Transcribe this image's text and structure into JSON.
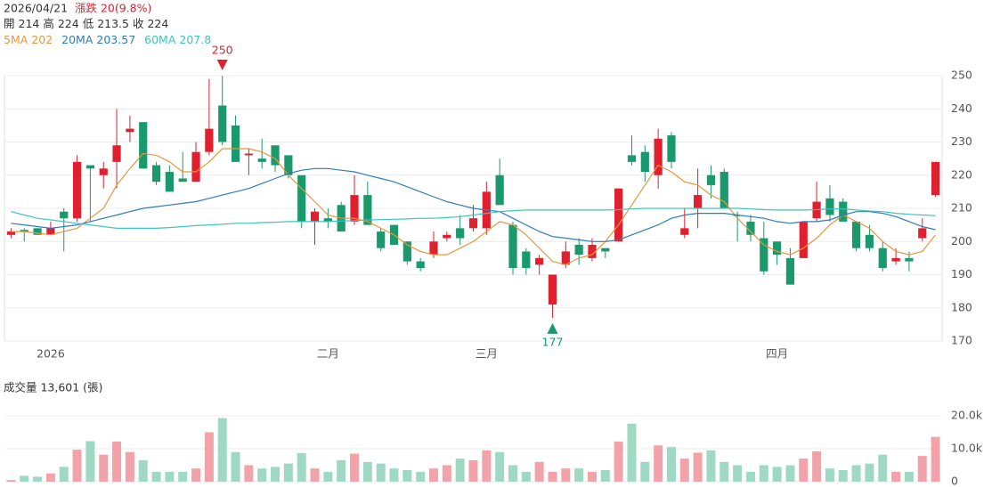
{
  "chart_data": {
    "type": "candlestick",
    "header": {
      "date": "2026/04/21",
      "change": "漲跌 20(9.8%)",
      "ohlc_labels": [
        "開",
        "高",
        "低",
        "收"
      ]
    },
    "categories": [
      null,
      null,
      null,
      "2026",
      null,
      null,
      null,
      null,
      null,
      null,
      null,
      null,
      null,
      null,
      null,
      null,
      null,
      null,
      null,
      null,
      null,
      null,
      null,
      null,
      "二月",
      null,
      null,
      null,
      null,
      null,
      null,
      null,
      null,
      null,
      null,
      null,
      "三月",
      null,
      null,
      null,
      null,
      null,
      null,
      null,
      null,
      null,
      null,
      null,
      null,
      null,
      null,
      null,
      null,
      null,
      null,
      null,
      null,
      null,
      "四月",
      null,
      null,
      null,
      null,
      null,
      null,
      null,
      null,
      null,
      null,
      null,
      null
    ],
    "open": [
      202,
      203.5,
      204,
      202,
      209,
      207,
      223,
      220,
      224,
      233,
      236,
      223,
      221,
      219,
      218,
      227,
      241,
      235,
      226,
      225,
      229,
      226,
      220,
      206,
      207,
      211,
      206,
      214,
      203,
      205,
      200,
      194,
      196,
      201,
      204,
      204,
      204,
      220,
      205,
      197,
      193,
      181,
      193,
      199,
      195,
      198,
      200,
      226,
      227,
      220,
      232,
      202,
      210,
      220,
      221,
      208,
      206,
      201,
      200,
      195,
      195,
      207,
      213,
      212,
      206,
      202,
      198,
      194,
      195,
      201,
      214
    ],
    "high": [
      204,
      204,
      204,
      206,
      210,
      226,
      223,
      224,
      240,
      238,
      236,
      224,
      223,
      227,
      230,
      249,
      250,
      238,
      228,
      231,
      229,
      226,
      220,
      210,
      210,
      212,
      220,
      218,
      204,
      205,
      200,
      195,
      203,
      203,
      208,
      211,
      218,
      225,
      206,
      198,
      196,
      190,
      200,
      201,
      201,
      198,
      216,
      232,
      229,
      234,
      233,
      210,
      222,
      223,
      222,
      209,
      208,
      206,
      200,
      198,
      206,
      218,
      217,
      213,
      206,
      205,
      200,
      198,
      197,
      207,
      224
    ],
    "low": [
      201,
      200,
      202,
      202,
      197,
      206,
      206,
      216,
      216,
      230,
      222,
      217,
      215,
      218,
      218,
      226,
      229,
      224,
      220,
      222,
      221,
      219,
      204,
      199,
      204,
      203,
      205,
      205,
      197,
      199,
      193,
      191,
      195,
      200,
      199,
      203,
      202,
      211,
      190,
      190,
      190,
      177,
      192,
      193,
      194,
      195,
      200,
      223,
      218,
      216,
      222,
      201,
      204,
      213,
      210,
      200,
      200,
      190,
      193,
      187,
      195,
      206,
      206,
      206,
      197,
      197,
      191,
      193,
      191,
      200,
      213.5
    ],
    "close": [
      203,
      203,
      202,
      204,
      207,
      224,
      222,
      222,
      229,
      234,
      222,
      218,
      215,
      218,
      227,
      234,
      230,
      224,
      226.5,
      224,
      223,
      220,
      206,
      209,
      206,
      203,
      214,
      205,
      198,
      199,
      194,
      192,
      200,
      202,
      201,
      207,
      215,
      211,
      192,
      192,
      195,
      190,
      197,
      196,
      199,
      197,
      216,
      224,
      221,
      231,
      224,
      204,
      214,
      217,
      210,
      208,
      202,
      191,
      196,
      187,
      206,
      212,
      208,
      206,
      198,
      198,
      192,
      195,
      194,
      204,
      224
    ],
    "up_color": "#e0202e",
    "down_color": "#1a9a6c",
    "series": [
      {
        "name": "5MA",
        "color": "#e8963a",
        "values": [
          203,
          203,
          202.5,
          202,
          203,
          204,
          207,
          210,
          217,
          222,
          226.5,
          226,
          224,
          221,
          221,
          224,
          228,
          228,
          228,
          227,
          225,
          220,
          216,
          212,
          208,
          207,
          207,
          206,
          204,
          202,
          199,
          197,
          196,
          196,
          198,
          200,
          203,
          206,
          205,
          202,
          198,
          194,
          193,
          195,
          196,
          200,
          205,
          211,
          217,
          223,
          221,
          218,
          217,
          214,
          212,
          207,
          203,
          199,
          197,
          196,
          198,
          201,
          205,
          208,
          206,
          204,
          200,
          197,
          196,
          197,
          202
        ]
      },
      {
        "name": "20MA",
        "color": "#2f7bbf",
        "values": [
          205.5,
          205,
          204.5,
          204,
          204.5,
          205,
          206,
          207,
          208,
          209,
          210,
          210.5,
          211,
          211.5,
          212,
          213,
          214,
          215,
          216,
          217.5,
          219,
          220.5,
          221.5,
          222,
          222,
          221.5,
          221,
          220,
          219,
          218,
          216.5,
          215,
          213.5,
          212,
          211,
          210,
          209.5,
          209,
          207,
          205,
          203,
          201.5,
          201,
          200.5,
          200,
          200,
          200.5,
          202,
          203.5,
          205,
          207,
          208,
          208.5,
          208.5,
          208.5,
          208,
          207.5,
          207,
          206,
          205.5,
          206,
          206,
          206.5,
          208,
          209,
          209,
          208.5,
          207.5,
          206,
          204.5,
          203.57
        ]
      },
      {
        "name": "60MA",
        "color": "#3cc6c0",
        "values": [
          209,
          208,
          207,
          206.5,
          206,
          205.5,
          205,
          204.5,
          204,
          204,
          204,
          204,
          204.2,
          204.5,
          204.8,
          205,
          205.2,
          205.5,
          205.5,
          205.7,
          205.8,
          206,
          206,
          206,
          206,
          206.2,
          206.3,
          206.5,
          206.6,
          206.7,
          206.8,
          207,
          207,
          207.2,
          207.5,
          208,
          208.5,
          209,
          209.3,
          209.5,
          209.5,
          209.5,
          209.5,
          209.5,
          209.5,
          209.5,
          209.6,
          209.8,
          210,
          210,
          210,
          210,
          210,
          210,
          210,
          210,
          209.8,
          209.6,
          209.5,
          209.5,
          209.5,
          209.6,
          209.8,
          209.8,
          209.5,
          209.2,
          209,
          208.5,
          208.2,
          208,
          207.8
        ]
      }
    ],
    "ylim": [
      170,
      250
    ],
    "yticks": [
      170,
      180,
      190,
      200,
      210,
      220,
      230,
      240,
      250
    ],
    "grid": true,
    "volume": {
      "caption": "成交量 13,601 (張)",
      "values": [
        500,
        1800,
        1500,
        2500,
        4500,
        9700,
        12300,
        8200,
        12200,
        9000,
        6500,
        3000,
        3000,
        3000,
        4000,
        15000,
        19300,
        9000,
        5000,
        4000,
        4500,
        5500,
        8700,
        4000,
        3000,
        6500,
        8500,
        6000,
        5500,
        4000,
        3500,
        3000,
        4000,
        5000,
        7000,
        6500,
        9500,
        9000,
        5000,
        3000,
        6000,
        3000,
        4000,
        4000,
        3000,
        3500,
        12200,
        17600,
        6000,
        11000,
        10500,
        7000,
        8800,
        9500,
        6000,
        5000,
        3000,
        5000,
        4500,
        5000,
        7000,
        9200,
        4000,
        3500,
        5000,
        5500,
        8200,
        3000,
        3000,
        7800,
        13601
      ],
      "up_color": "#f2a3a9",
      "down_color": "#9fd9c3",
      "ylim": [
        0,
        20000
      ],
      "yticks": [
        0,
        {
          "value": 10000,
          "label": "10.0k"
        },
        {
          "value": 20000,
          "label": "20.0k"
        }
      ]
    }
  }
}
